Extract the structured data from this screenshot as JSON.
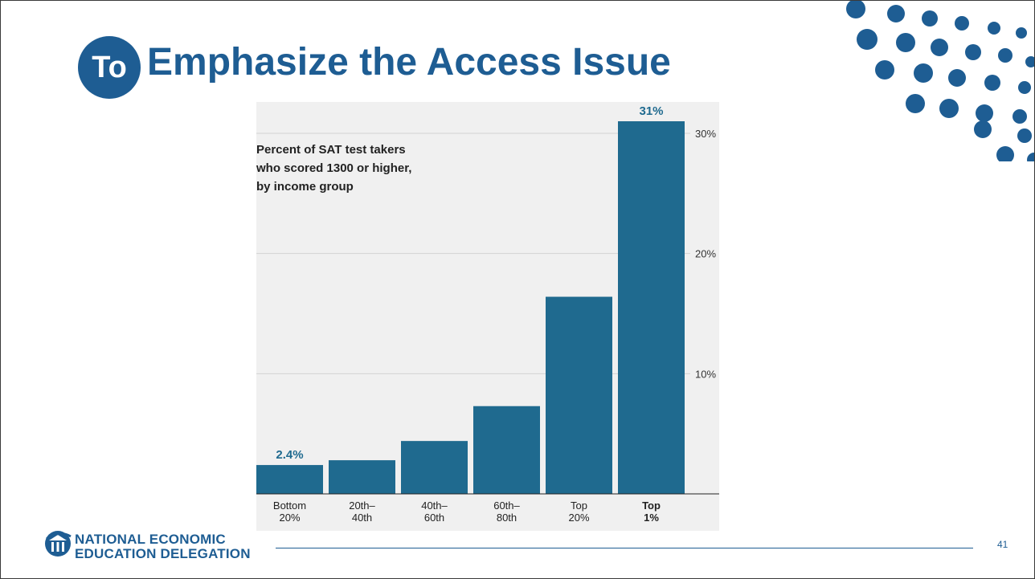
{
  "slide": {
    "title_badge": "To",
    "title": "Emphasize the Access Issue",
    "page_number": "41",
    "accent_color": "#1e5d93"
  },
  "footer": {
    "org_line1": "NATIONAL ECONOMIC",
    "org_line2": "EDUCATION DELEGATION",
    "logo_icon": "building-columns-icon"
  },
  "chart_data": {
    "type": "bar",
    "title_lines": [
      "Percent of SAT test takers",
      "who scored 1300 or higher,",
      "by income group"
    ],
    "categories": [
      [
        "Bottom",
        "20%"
      ],
      [
        "20th–",
        "40th"
      ],
      [
        "40th–",
        "60th"
      ],
      [
        "60th–",
        "80th"
      ],
      [
        "Top",
        "20%"
      ],
      [
        "Top",
        "1%"
      ]
    ],
    "highlight_category_index": 5,
    "values": [
      2.4,
      2.8,
      4.4,
      7.3,
      16.4,
      31
    ],
    "value_labels": {
      "0": "2.4%",
      "5": "31%"
    },
    "y_ticks": [
      10,
      20,
      30
    ],
    "y_tick_labels": [
      "10%",
      "20%",
      "30%"
    ],
    "ylim": [
      0,
      31
    ],
    "y_axis_side": "right",
    "grid": true,
    "bar_color": "#1f6a8f",
    "background_color": "#f0f0f0"
  }
}
